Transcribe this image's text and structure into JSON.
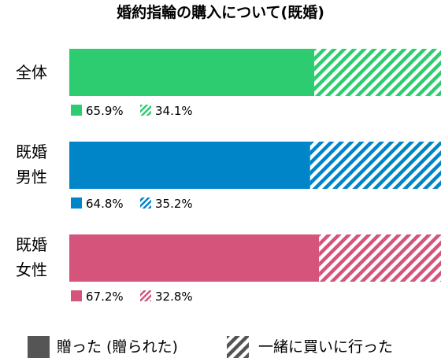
{
  "chart_data": {
    "type": "bar",
    "orientation": "horizontal",
    "stacked": true,
    "title": "婚約指輪の購入について(既婚)",
    "xlim": [
      0,
      100
    ],
    "categories": [
      {
        "name": "全体",
        "lines": [
          "全体"
        ],
        "color": "#2ecc71"
      },
      {
        "name": "既婚男性",
        "lines": [
          "既婚",
          "男性"
        ],
        "color": "#0085c8"
      },
      {
        "name": "既婚女性",
        "lines": [
          "既婚",
          "女性"
        ],
        "color": "#d4547c"
      }
    ],
    "series": [
      {
        "name": "贈った (贈られた)",
        "style": "solid",
        "values": [
          65.9,
          64.8,
          67.2
        ],
        "labels": [
          "65.9%",
          "64.8%",
          "67.2%"
        ]
      },
      {
        "name": "一緒に買いに行った",
        "style": "hatched",
        "values": [
          34.1,
          35.2,
          32.8
        ],
        "labels": [
          "34.1%",
          "35.2%",
          "32.8%"
        ]
      }
    ],
    "legend": {
      "position": "bottom",
      "color": "#555555"
    },
    "grid": false
  }
}
